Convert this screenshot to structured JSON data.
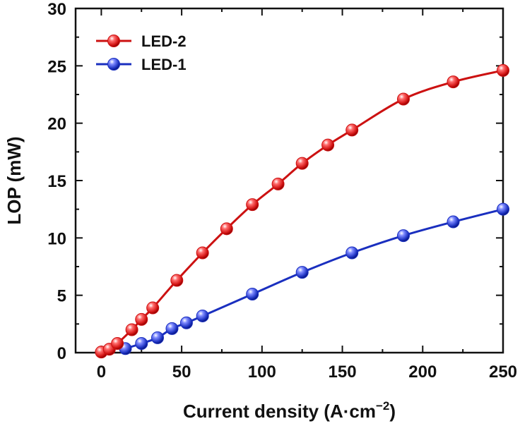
{
  "chart_data": {
    "type": "line",
    "xlabel": "Current density (A·cm",
    "xlabel_sup": "−2",
    "xlabel_close": ")",
    "ylabel": "LOP (mW)",
    "xlim": [
      -16,
      250
    ],
    "ylim": [
      0,
      30
    ],
    "xticks": [
      0,
      50,
      100,
      150,
      200,
      250
    ],
    "yticks": [
      0,
      5,
      10,
      15,
      20,
      25,
      30
    ],
    "xtick_labels": [
      "0",
      "50",
      "100",
      "150",
      "200",
      "250"
    ],
    "ytick_labels": [
      "0",
      "5",
      "10",
      "15",
      "20",
      "25",
      "30"
    ],
    "grid": false,
    "legend_position": "top-left",
    "series": [
      {
        "name": "LED-2",
        "color": "#cc1111",
        "x": [
          0,
          5,
          10,
          19,
          25,
          32,
          47,
          63,
          78,
          94,
          110,
          125,
          141,
          156,
          188,
          219,
          250
        ],
        "y": [
          0.05,
          0.3,
          0.8,
          2.0,
          2.9,
          3.9,
          6.3,
          8.7,
          10.8,
          12.9,
          14.7,
          16.5,
          18.1,
          19.4,
          22.1,
          23.6,
          24.6
        ]
      },
      {
        "name": "LED-1",
        "color": "#1a2fbf",
        "x": [
          15,
          25,
          35,
          44,
          53,
          63,
          94,
          125,
          156,
          188,
          219,
          250
        ],
        "y": [
          0.35,
          0.8,
          1.3,
          2.1,
          2.6,
          3.2,
          5.1,
          7.0,
          8.7,
          10.2,
          11.4,
          12.5
        ]
      }
    ]
  }
}
